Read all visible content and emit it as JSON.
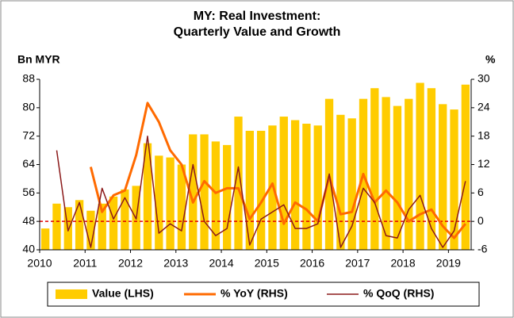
{
  "chart_data": {
    "type": "bar-line",
    "title": "MY: Real Investment:",
    "subtitle": "Quarterly Value and Growth",
    "y_label": "Bn MYR",
    "y2_label": "%",
    "categories": [
      "2010",
      null,
      null,
      null,
      "2011",
      null,
      null,
      null,
      "2012",
      null,
      null,
      null,
      "2013",
      null,
      null,
      null,
      "2014",
      null,
      null,
      null,
      "2015",
      null,
      null,
      null,
      "2016",
      null,
      null,
      null,
      "2017",
      null,
      null,
      null,
      "2018",
      null,
      null,
      null,
      "2019",
      null
    ],
    "series": [
      {
        "name": "Value (LHS)",
        "type": "bar",
        "axis": "y",
        "color": "#ffcc00",
        "values": [
          46,
          53,
          52,
          54,
          51,
          53,
          55,
          57,
          58,
          70,
          66.5,
          66,
          64,
          72.5,
          72.5,
          70.5,
          69.5,
          77.5,
          73.5,
          73.5,
          75,
          77.5,
          76.5,
          75.5,
          75,
          82.5,
          78,
          77,
          82.5,
          85.5,
          83,
          80.5,
          82.5,
          87,
          85.5,
          81,
          79.5,
          86.5
        ]
      },
      {
        "name": "% YoY (RHS)",
        "type": "line",
        "axis": "y2",
        "color": "#ff6a00",
        "width": 3,
        "values": [
          null,
          null,
          null,
          null,
          11.5,
          2,
          5.5,
          6.5,
          14,
          25,
          21,
          15,
          12,
          4,
          8.5,
          6,
          7,
          7,
          0.5,
          4,
          8,
          -0.5,
          4,
          2.5,
          0,
          9.5,
          1.5,
          2,
          10,
          4,
          6.5,
          4,
          0,
          1.5,
          2.5,
          -1,
          -3.5,
          -0.5
        ]
      },
      {
        "name": "% QoQ (RHS)",
        "type": "line",
        "axis": "y2",
        "color": "#8b1a1a",
        "width": 1.5,
        "values": [
          null,
          15,
          -2,
          4,
          -5.5,
          7,
          0.5,
          5,
          0.5,
          18,
          -2.5,
          -0.5,
          -2,
          12,
          0,
          -3,
          -1.5,
          11.5,
          -5,
          0.5,
          2,
          3.5,
          -1.5,
          -1.5,
          -0.5,
          10,
          -5.5,
          -1,
          7,
          4,
          -3,
          -3.5,
          2.5,
          5.5,
          -1.5,
          -5.5,
          -2,
          8.5
        ]
      }
    ],
    "ylim": [
      40,
      88
    ],
    "yticks": [
      40,
      48,
      56,
      64,
      72,
      80,
      88
    ],
    "y2lim": [
      -6,
      30
    ],
    "y2ticks": [
      -6,
      0,
      6,
      12,
      18,
      24,
      30
    ],
    "reference_line": {
      "value": 0,
      "axis": "y2",
      "color": "#e00000"
    },
    "legend": "bottom"
  }
}
